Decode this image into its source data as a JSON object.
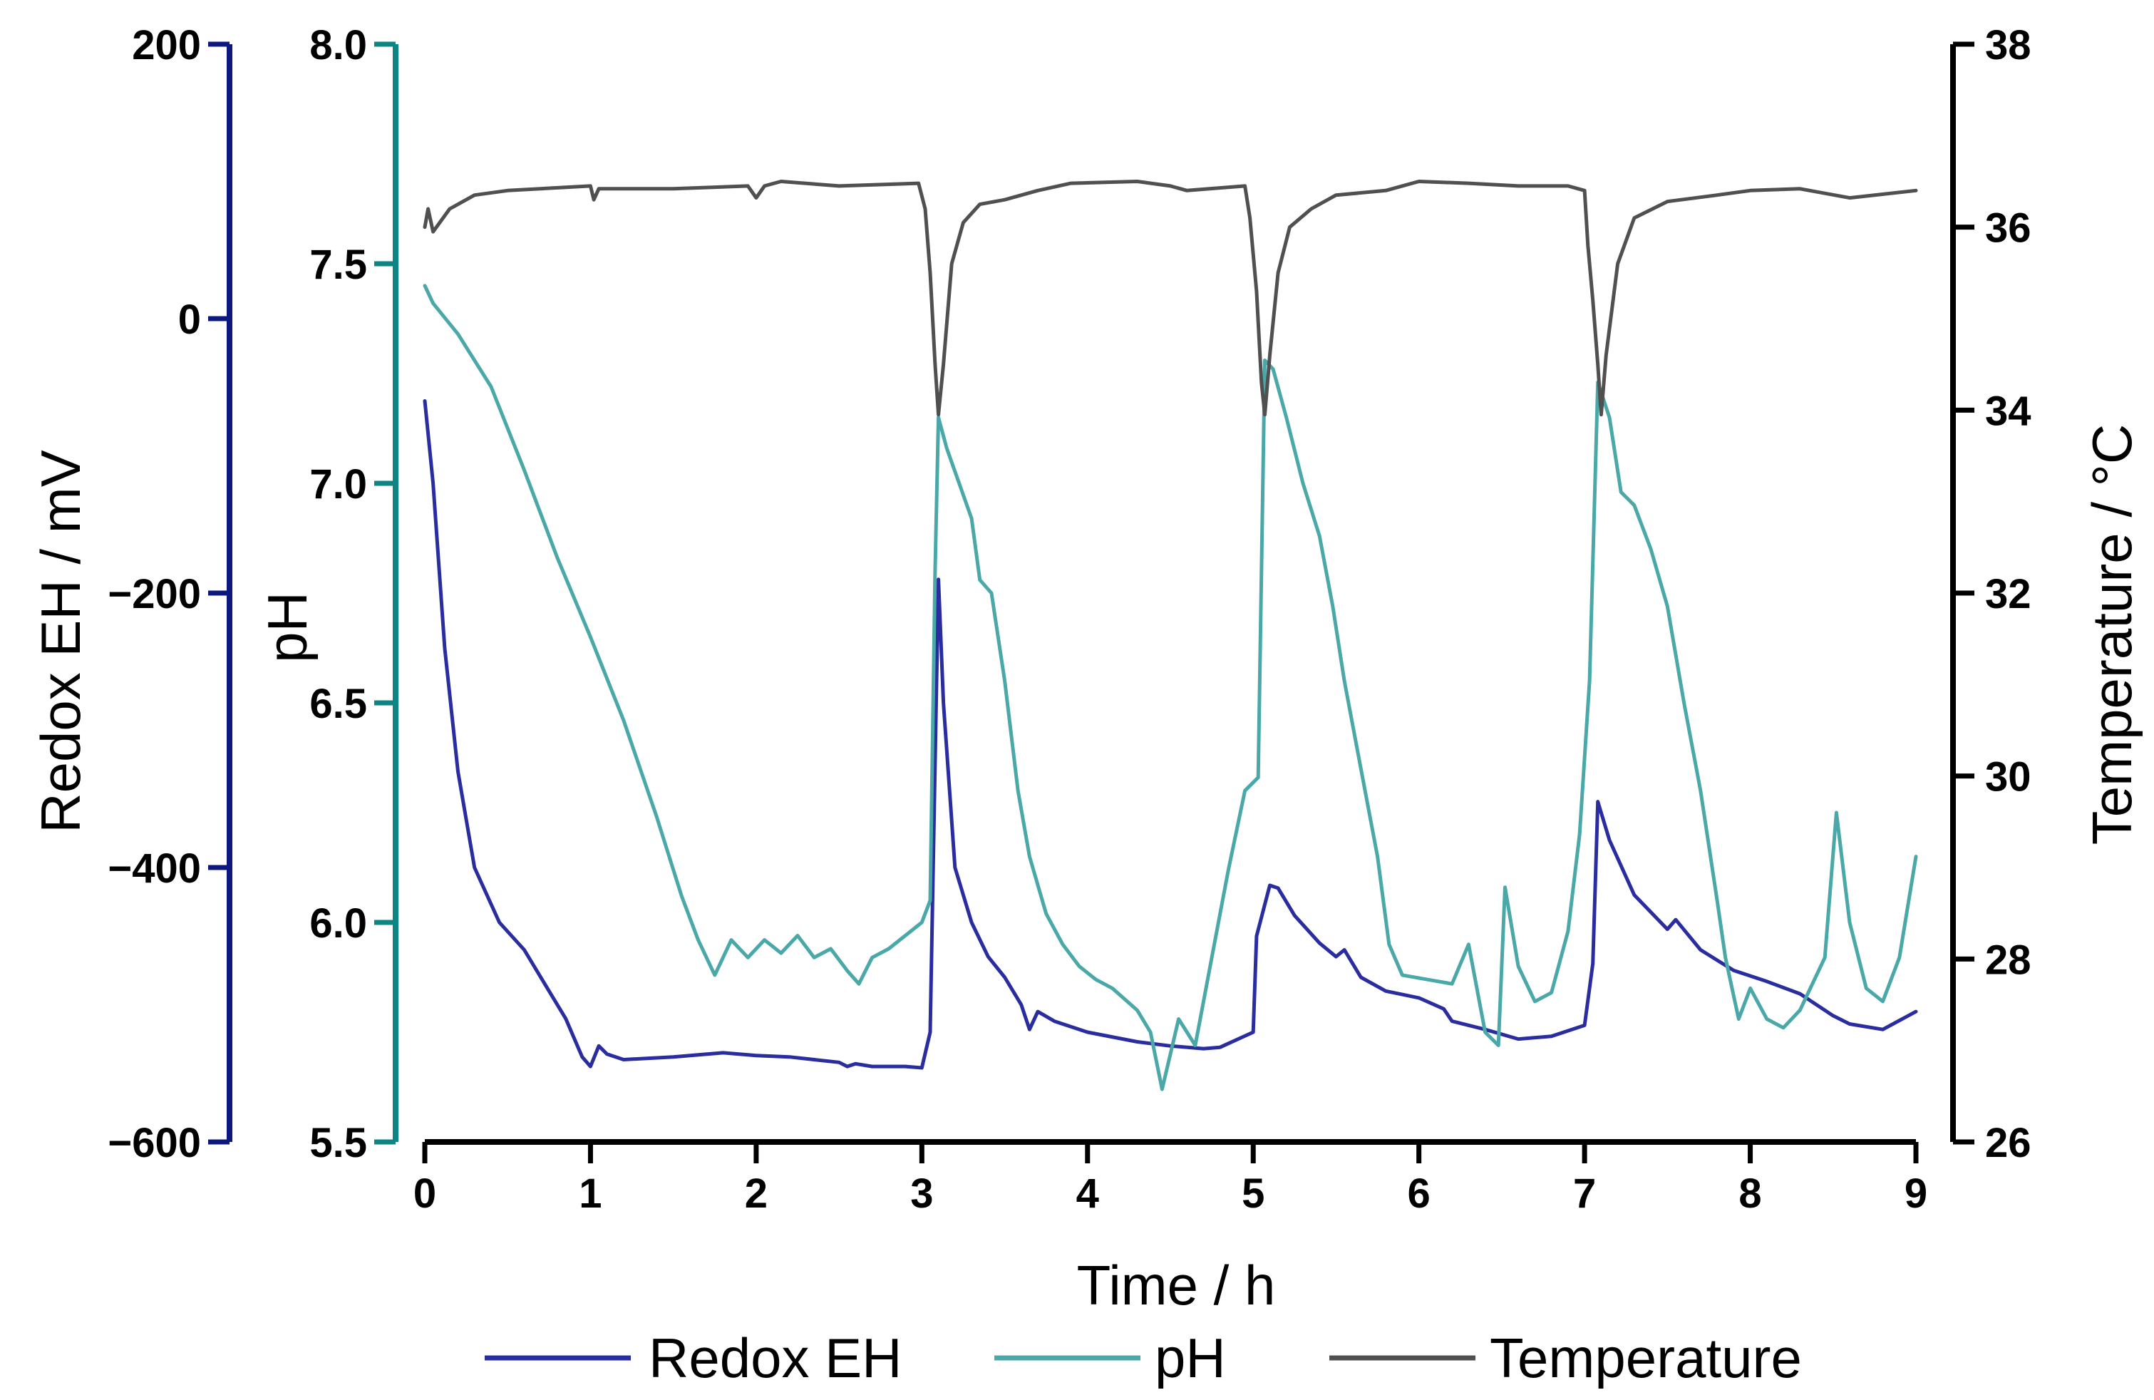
{
  "chart_data": {
    "type": "line",
    "x_axis": {
      "label": "Time / h",
      "range": [
        0,
        9
      ],
      "ticks": [
        "0",
        "1",
        "2",
        "3",
        "4",
        "5",
        "6",
        "7",
        "8",
        "9"
      ]
    },
    "y_axes": [
      {
        "id": "redox",
        "label": "Redox EH / mV",
        "range": [
          -600,
          200
        ],
        "ticks": [
          "200",
          "0",
          "−200",
          "−400",
          "−600"
        ],
        "tick_values": [
          200,
          0,
          -200,
          -400,
          -600
        ],
        "color": "#0c1780",
        "side": "left-outer"
      },
      {
        "id": "ph",
        "label": "pH",
        "range": [
          5.5,
          8.0
        ],
        "ticks": [
          "8.0",
          "7.5",
          "7.0",
          "6.5",
          "6.0",
          "5.5"
        ],
        "tick_values": [
          8.0,
          7.5,
          7.0,
          6.5,
          6.0,
          5.5
        ],
        "color": "#0e8585",
        "side": "left-inner"
      },
      {
        "id": "temperature",
        "label": "Temperature / °C",
        "range": [
          26,
          38
        ],
        "ticks": [
          "38",
          "36",
          "34",
          "32",
          "30",
          "28",
          "26"
        ],
        "tick_values": [
          38,
          36,
          34,
          32,
          30,
          28,
          26
        ],
        "color": "#000000",
        "side": "right"
      }
    ],
    "legend": {
      "position": "bottom",
      "entries": [
        "Redox EH",
        "pH",
        "Temperature"
      ]
    },
    "series": [
      {
        "name": "Redox EH",
        "axis": "redox",
        "color": "#2a2da0",
        "points": [
          [
            0,
            -60
          ],
          [
            0.05,
            -120
          ],
          [
            0.12,
            -240
          ],
          [
            0.2,
            -330
          ],
          [
            0.3,
            -400
          ],
          [
            0.45,
            -440
          ],
          [
            0.6,
            -460
          ],
          [
            0.75,
            -490
          ],
          [
            0.85,
            -510
          ],
          [
            0.95,
            -538
          ],
          [
            1.0,
            -545
          ],
          [
            1.05,
            -530
          ],
          [
            1.1,
            -536
          ],
          [
            1.2,
            -540
          ],
          [
            1.5,
            -538
          ],
          [
            1.8,
            -535
          ],
          [
            2.0,
            -537
          ],
          [
            2.2,
            -538
          ],
          [
            2.5,
            -542
          ],
          [
            2.55,
            -545
          ],
          [
            2.6,
            -543
          ],
          [
            2.7,
            -545
          ],
          [
            2.9,
            -545
          ],
          [
            3.0,
            -546
          ],
          [
            3.05,
            -520
          ],
          [
            3.1,
            -190
          ],
          [
            3.13,
            -280
          ],
          [
            3.2,
            -400
          ],
          [
            3.3,
            -440
          ],
          [
            3.4,
            -465
          ],
          [
            3.5,
            -480
          ],
          [
            3.6,
            -500
          ],
          [
            3.65,
            -518
          ],
          [
            3.7,
            -505
          ],
          [
            3.8,
            -512
          ],
          [
            4.0,
            -520
          ],
          [
            4.3,
            -527
          ],
          [
            4.5,
            -530
          ],
          [
            4.7,
            -532
          ],
          [
            4.8,
            -531
          ],
          [
            5.0,
            -520
          ],
          [
            5.02,
            -450
          ],
          [
            5.1,
            -413
          ],
          [
            5.15,
            -415
          ],
          [
            5.25,
            -435
          ],
          [
            5.4,
            -455
          ],
          [
            5.5,
            -465
          ],
          [
            5.55,
            -460
          ],
          [
            5.65,
            -480
          ],
          [
            5.8,
            -490
          ],
          [
            6.0,
            -495
          ],
          [
            6.15,
            -503
          ],
          [
            6.2,
            -512
          ],
          [
            6.4,
            -518
          ],
          [
            6.6,
            -525
          ],
          [
            6.8,
            -523
          ],
          [
            7.0,
            -515
          ],
          [
            7.05,
            -470
          ],
          [
            7.08,
            -352
          ],
          [
            7.15,
            -380
          ],
          [
            7.3,
            -420
          ],
          [
            7.5,
            -445
          ],
          [
            7.55,
            -438
          ],
          [
            7.7,
            -460
          ],
          [
            7.9,
            -475
          ],
          [
            8.1,
            -483
          ],
          [
            8.3,
            -492
          ],
          [
            8.5,
            -508
          ],
          [
            8.6,
            -514
          ],
          [
            8.8,
            -518
          ],
          [
            9.0,
            -505
          ]
        ]
      },
      {
        "name": "pH",
        "axis": "ph",
        "color": "#4aa8a8",
        "points": [
          [
            0,
            7.45
          ],
          [
            0.05,
            7.41
          ],
          [
            0.2,
            7.34
          ],
          [
            0.4,
            7.22
          ],
          [
            0.6,
            7.03
          ],
          [
            0.8,
            6.83
          ],
          [
            1.0,
            6.65
          ],
          [
            1.2,
            6.46
          ],
          [
            1.4,
            6.24
          ],
          [
            1.55,
            6.06
          ],
          [
            1.65,
            5.96
          ],
          [
            1.75,
            5.88
          ],
          [
            1.85,
            5.96
          ],
          [
            1.95,
            5.92
          ],
          [
            2.05,
            5.96
          ],
          [
            2.15,
            5.93
          ],
          [
            2.25,
            5.97
          ],
          [
            2.35,
            5.92
          ],
          [
            2.45,
            5.94
          ],
          [
            2.55,
            5.89
          ],
          [
            2.62,
            5.86
          ],
          [
            2.7,
            5.92
          ],
          [
            2.8,
            5.94
          ],
          [
            2.9,
            5.97
          ],
          [
            3.0,
            6.0
          ],
          [
            3.05,
            6.05
          ],
          [
            3.08,
            6.8
          ],
          [
            3.1,
            7.15
          ],
          [
            3.15,
            7.08
          ],
          [
            3.3,
            6.92
          ],
          [
            3.35,
            6.78
          ],
          [
            3.42,
            6.75
          ],
          [
            3.5,
            6.55
          ],
          [
            3.58,
            6.3
          ],
          [
            3.65,
            6.15
          ],
          [
            3.75,
            6.02
          ],
          [
            3.85,
            5.95
          ],
          [
            3.95,
            5.9
          ],
          [
            4.05,
            5.87
          ],
          [
            4.15,
            5.85
          ],
          [
            4.3,
            5.8
          ],
          [
            4.38,
            5.75
          ],
          [
            4.45,
            5.62
          ],
          [
            4.55,
            5.78
          ],
          [
            4.65,
            5.72
          ],
          [
            4.75,
            5.92
          ],
          [
            4.85,
            6.12
          ],
          [
            4.95,
            6.3
          ],
          [
            5.03,
            6.33
          ],
          [
            5.07,
            7.28
          ],
          [
            5.12,
            7.26
          ],
          [
            5.2,
            7.15
          ],
          [
            5.3,
            7.0
          ],
          [
            5.4,
            6.88
          ],
          [
            5.48,
            6.72
          ],
          [
            5.55,
            6.55
          ],
          [
            5.65,
            6.35
          ],
          [
            5.75,
            6.15
          ],
          [
            5.82,
            5.95
          ],
          [
            5.9,
            5.88
          ],
          [
            6.05,
            5.87
          ],
          [
            6.2,
            5.86
          ],
          [
            6.3,
            5.95
          ],
          [
            6.4,
            5.75
          ],
          [
            6.48,
            5.72
          ],
          [
            6.52,
            6.08
          ],
          [
            6.6,
            5.9
          ],
          [
            6.7,
            5.82
          ],
          [
            6.8,
            5.84
          ],
          [
            6.9,
            5.98
          ],
          [
            6.97,
            6.2
          ],
          [
            7.03,
            6.55
          ],
          [
            7.08,
            7.23
          ],
          [
            7.15,
            7.15
          ],
          [
            7.22,
            6.98
          ],
          [
            7.3,
            6.95
          ],
          [
            7.4,
            6.85
          ],
          [
            7.5,
            6.72
          ],
          [
            7.6,
            6.5
          ],
          [
            7.7,
            6.3
          ],
          [
            7.8,
            6.05
          ],
          [
            7.85,
            5.92
          ],
          [
            7.93,
            5.78
          ],
          [
            8.0,
            5.85
          ],
          [
            8.1,
            5.78
          ],
          [
            8.2,
            5.76
          ],
          [
            8.3,
            5.8
          ],
          [
            8.45,
            5.92
          ],
          [
            8.52,
            6.25
          ],
          [
            8.6,
            6.0
          ],
          [
            8.7,
            5.85
          ],
          [
            8.8,
            5.82
          ],
          [
            8.9,
            5.92
          ],
          [
            9.0,
            6.15
          ]
        ]
      },
      {
        "name": "Temperature",
        "axis": "temperature",
        "color": "#505050",
        "points": [
          [
            0,
            36.0
          ],
          [
            0.02,
            36.2
          ],
          [
            0.05,
            35.95
          ],
          [
            0.15,
            36.2
          ],
          [
            0.3,
            36.35
          ],
          [
            0.5,
            36.4
          ],
          [
            1.0,
            36.45
          ],
          [
            1.02,
            36.3
          ],
          [
            1.05,
            36.42
          ],
          [
            1.5,
            36.42
          ],
          [
            1.95,
            36.45
          ],
          [
            2.0,
            36.32
          ],
          [
            2.05,
            36.45
          ],
          [
            2.15,
            36.5
          ],
          [
            2.5,
            36.45
          ],
          [
            2.98,
            36.48
          ],
          [
            3.02,
            36.2
          ],
          [
            3.05,
            35.5
          ],
          [
            3.08,
            34.5
          ],
          [
            3.1,
            33.95
          ],
          [
            3.13,
            34.5
          ],
          [
            3.18,
            35.6
          ],
          [
            3.25,
            36.05
          ],
          [
            3.35,
            36.25
          ],
          [
            3.5,
            36.3
          ],
          [
            3.7,
            36.4
          ],
          [
            3.9,
            36.48
          ],
          [
            4.3,
            36.5
          ],
          [
            4.5,
            36.45
          ],
          [
            4.6,
            36.4
          ],
          [
            4.95,
            36.45
          ],
          [
            4.98,
            36.1
          ],
          [
            5.02,
            35.3
          ],
          [
            5.05,
            34.3
          ],
          [
            5.07,
            33.95
          ],
          [
            5.1,
            34.6
          ],
          [
            5.15,
            35.5
          ],
          [
            5.22,
            36.0
          ],
          [
            5.35,
            36.2
          ],
          [
            5.5,
            36.35
          ],
          [
            5.8,
            36.4
          ],
          [
            6.0,
            36.5
          ],
          [
            6.3,
            36.48
          ],
          [
            6.6,
            36.45
          ],
          [
            6.9,
            36.45
          ],
          [
            7.0,
            36.4
          ],
          [
            7.02,
            35.8
          ],
          [
            7.05,
            35.2
          ],
          [
            7.08,
            34.5
          ],
          [
            7.1,
            33.95
          ],
          [
            7.13,
            34.6
          ],
          [
            7.2,
            35.6
          ],
          [
            7.3,
            36.1
          ],
          [
            7.5,
            36.28
          ],
          [
            7.8,
            36.35
          ],
          [
            8.0,
            36.4
          ],
          [
            8.3,
            36.42
          ],
          [
            8.6,
            36.32
          ],
          [
            9.0,
            36.4
          ]
        ]
      }
    ]
  }
}
